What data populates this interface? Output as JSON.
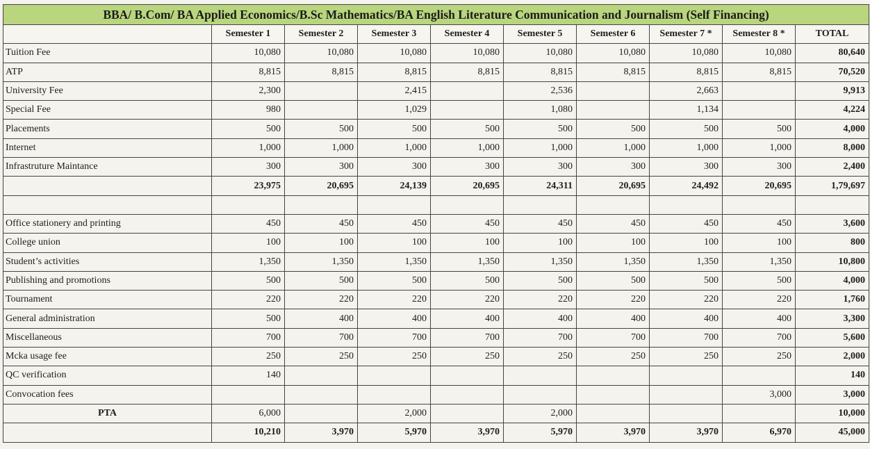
{
  "title": "BBA/ B.Com/ BA Applied Economics/B.Sc Mathematics/BA English Literature Communication and Journalism (Self Financing)",
  "headers": [
    "",
    "Semester 1",
    "Semester 2",
    "Semester 3",
    "Semester 4",
    "Semester 5",
    "Semester 6",
    "Semester 7 *",
    "Semester 8 *",
    "TOTAL"
  ],
  "rows": [
    {
      "label": "Tuition Fee",
      "values": [
        "10,080",
        "10,080",
        "10,080",
        "10,080",
        "10,080",
        "10,080",
        "10,080",
        "10,080"
      ],
      "total": "80,640"
    },
    {
      "label": "ATP",
      "values": [
        "8,815",
        "8,815",
        "8,815",
        "8,815",
        "8,815",
        "8,815",
        "8,815",
        "8,815"
      ],
      "total": "70,520"
    },
    {
      "label": "University Fee",
      "values": [
        "2,300",
        "",
        "2,415",
        "",
        "2,536",
        "",
        "2,663",
        ""
      ],
      "total": "9,913"
    },
    {
      "label": "Special Fee",
      "values": [
        "980",
        "",
        "1,029",
        "",
        "1,080",
        "",
        "1,134",
        ""
      ],
      "total": "4,224"
    },
    {
      "label": "Placements",
      "values": [
        "500",
        "500",
        "500",
        "500",
        "500",
        "500",
        "500",
        "500"
      ],
      "total": "4,000"
    },
    {
      "label": "Internet",
      "values": [
        "1,000",
        "1,000",
        "1,000",
        "1,000",
        "1,000",
        "1,000",
        "1,000",
        "1,000"
      ],
      "total": "8,000"
    },
    {
      "label": "Infrastruture Maintance",
      "values": [
        "300",
        "300",
        "300",
        "300",
        "300",
        "300",
        "300",
        "300"
      ],
      "total": "2,400"
    },
    {
      "label": "",
      "sum": true,
      "values": [
        "23,975",
        "20,695",
        "24,139",
        "20,695",
        "24,311",
        "20,695",
        "24,492",
        "20,695"
      ],
      "total": "1,79,697"
    },
    {
      "label": "",
      "values": [
        "",
        "",
        "",
        "",
        "",
        "",
        "",
        ""
      ],
      "total": ""
    },
    {
      "label": "Office stationery and printing",
      "values": [
        "450",
        "450",
        "450",
        "450",
        "450",
        "450",
        "450",
        "450"
      ],
      "total": "3,600"
    },
    {
      "label": "College union",
      "values": [
        "100",
        "100",
        "100",
        "100",
        "100",
        "100",
        "100",
        "100"
      ],
      "total": "800"
    },
    {
      "label": "Student’s activities",
      "values": [
        "1,350",
        "1,350",
        "1,350",
        "1,350",
        "1,350",
        "1,350",
        "1,350",
        "1,350"
      ],
      "total": "10,800"
    },
    {
      "label": "Publishing and promotions",
      "values": [
        "500",
        "500",
        "500",
        "500",
        "500",
        "500",
        "500",
        "500"
      ],
      "total": "4,000"
    },
    {
      "label": "Tournament",
      "values": [
        "220",
        "220",
        "220",
        "220",
        "220",
        "220",
        "220",
        "220"
      ],
      "total": "1,760"
    },
    {
      "label": "General administration",
      "values": [
        "500",
        "400",
        "400",
        "400",
        "400",
        "400",
        "400",
        "400"
      ],
      "total": "3,300"
    },
    {
      "label": "Miscellaneous",
      "values": [
        "700",
        "700",
        "700",
        "700",
        "700",
        "700",
        "700",
        "700"
      ],
      "total": "5,600"
    },
    {
      "label": "Mcka usage fee",
      "values": [
        "250",
        "250",
        "250",
        "250",
        "250",
        "250",
        "250",
        "250"
      ],
      "total": "2,000"
    },
    {
      "label": "QC verification",
      "values": [
        "140",
        "",
        "",
        "",
        "",
        "",
        "",
        ""
      ],
      "total": "140"
    },
    {
      "label": "Convocation fees",
      "values": [
        "",
        "",
        "",
        "",
        "",
        "",
        "",
        "3,000"
      ],
      "total": "3,000"
    },
    {
      "label": "PTA",
      "center": true,
      "values": [
        "6,000",
        "",
        "2,000",
        "",
        "2,000",
        "",
        "",
        ""
      ],
      "total": "10,000"
    },
    {
      "label": "",
      "sum": true,
      "values": [
        "10,210",
        "3,970",
        "5,970",
        "3,970",
        "5,970",
        "3,970",
        "3,970",
        "6,970"
      ],
      "total": "45,000"
    }
  ]
}
